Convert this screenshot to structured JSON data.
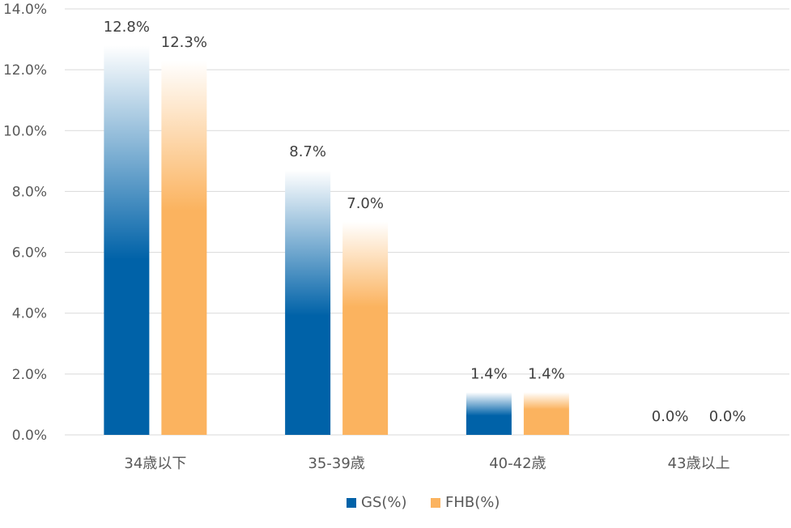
{
  "chart_data": {
    "type": "bar",
    "title": "",
    "xlabel": "",
    "ylabel": "",
    "categories": [
      "34歳以下",
      "35-39歳",
      "40-42歳",
      "43歳以上"
    ],
    "series": [
      {
        "name": "GS(%)",
        "values": [
          12.8,
          8.7,
          1.4,
          0.0
        ],
        "labels": [
          "12.8%",
          "8.7%",
          "1.4%",
          "0.0%"
        ],
        "color": "#0062a8"
      },
      {
        "name": "FHB(%)",
        "values": [
          12.3,
          7.0,
          1.4,
          0.0
        ],
        "labels": [
          "12.3%",
          "7.0%",
          "1.4%",
          "0.0%"
        ],
        "color": "#fbb35f"
      }
    ],
    "ylim": [
      0,
      14
    ],
    "yticks": [
      0,
      2,
      4,
      6,
      8,
      10,
      12,
      14
    ],
    "ytick_labels": [
      "0.0%",
      "2.0%",
      "4.0%",
      "6.0%",
      "8.0%",
      "10.0%",
      "12.0%",
      "14.0%"
    ],
    "grid": true,
    "legend_position": "bottom"
  }
}
